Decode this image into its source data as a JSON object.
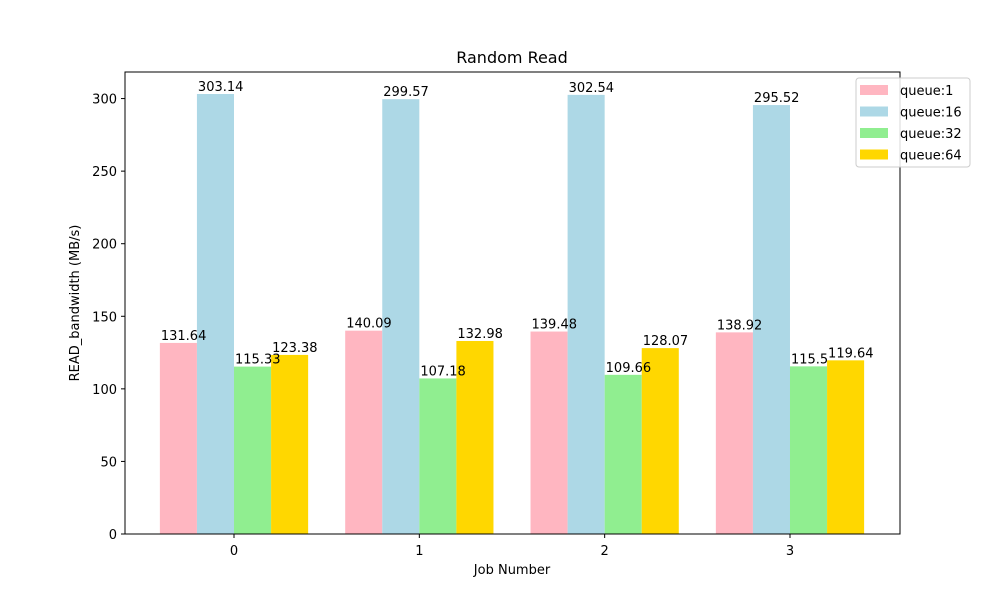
{
  "chart_data": {
    "type": "bar",
    "title": "Random Read",
    "xlabel": "Job Number",
    "ylabel": "READ_bandwidth (MB/s)",
    "categories": [
      "0",
      "1",
      "2",
      "3"
    ],
    "ylim": [
      0,
      318.3
    ],
    "yticks": [
      0,
      50,
      100,
      150,
      200,
      250,
      300
    ],
    "grid": false,
    "legend_position": "top-right",
    "series": [
      {
        "name": "queue:1",
        "color": "#ffb6c1",
        "values": [
          131.64,
          140.09,
          139.48,
          138.92
        ],
        "labels": [
          "131.64",
          "140.09",
          "139.48",
          "138.92"
        ]
      },
      {
        "name": "queue:16",
        "color": "#add8e6",
        "values": [
          303.14,
          299.57,
          302.54,
          295.52
        ],
        "labels": [
          "303.14",
          "299.57",
          "302.54",
          "295.52"
        ]
      },
      {
        "name": "queue:32",
        "color": "#90ee90",
        "values": [
          115.33,
          107.18,
          109.66,
          115.5
        ],
        "labels": [
          "115.33",
          "107.18",
          "109.66",
          "115.5"
        ]
      },
      {
        "name": "queue:64",
        "color": "#ffd700",
        "values": [
          123.38,
          132.98,
          128.07,
          119.64
        ],
        "labels": [
          "123.38",
          "132.98",
          "128.07",
          "119.64"
        ]
      }
    ]
  }
}
